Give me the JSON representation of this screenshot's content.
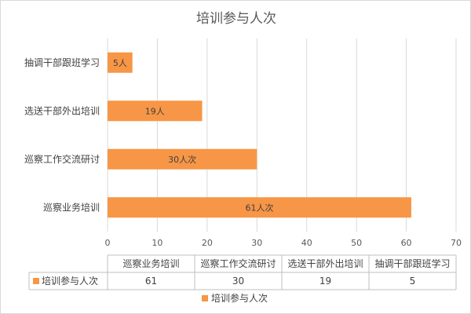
{
  "chart_data": {
    "type": "bar",
    "orientation": "horizontal",
    "title": "培训参与人次",
    "categories": [
      "巡察业务培训",
      "巡察工作交流研讨",
      "选送干部外出培训",
      "抽调干部跟班学习"
    ],
    "series": [
      {
        "name": "培训参与人次",
        "values": [
          61,
          30,
          19,
          5
        ],
        "data_labels": [
          "61人次",
          "30人次",
          "19人",
          "5人"
        ]
      }
    ],
    "xlim": [
      0,
      70
    ],
    "ticks": [
      0,
      10,
      20,
      30,
      40,
      50,
      60,
      70
    ],
    "grid": "vertical",
    "legend_position": "bottom",
    "data_table": true,
    "bar_color": "#F79646",
    "grid_color": "#D9D9D9"
  }
}
